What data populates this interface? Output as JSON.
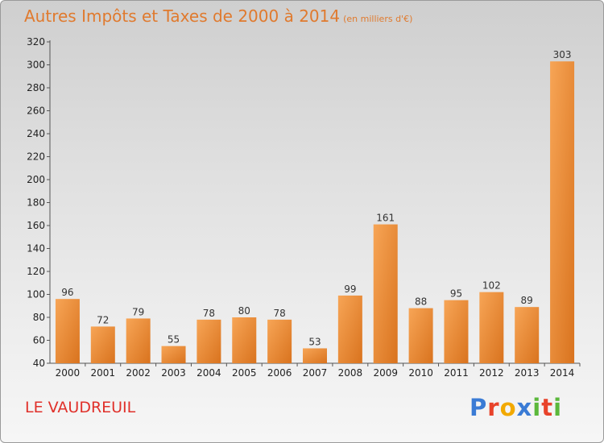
{
  "header": {
    "title": "Autres Impôts et Taxes de 2000 à 2014",
    "unit": "(en milliers d'€)"
  },
  "footer": {
    "town": "LE VAUDREUIL",
    "logo": [
      "P",
      "r",
      "o",
      "x",
      "i",
      "t",
      "i"
    ]
  },
  "colors": {
    "title": "#e07a2e",
    "town": "#e0302a",
    "bar_light": "#f7a556",
    "bar_dark": "#d9731e",
    "logo": [
      "#3a7bd5",
      "#e8432b",
      "#f2a900",
      "#3a7bd5",
      "#5bb83b",
      "#e8432b",
      "#5bb83b"
    ]
  },
  "chart_data": {
    "type": "bar",
    "title": "Autres Impôts et Taxes de 2000 à 2014",
    "subtitle": "(en milliers d'€)",
    "xlabel": "",
    "ylabel": "",
    "categories": [
      "2000",
      "2001",
      "2002",
      "2003",
      "2004",
      "2005",
      "2006",
      "2007",
      "2008",
      "2009",
      "2010",
      "2011",
      "2012",
      "2013",
      "2014"
    ],
    "values": [
      96,
      72,
      79,
      55,
      78,
      80,
      78,
      53,
      99,
      161,
      88,
      95,
      102,
      89,
      303
    ],
    "ylim": [
      40,
      320
    ],
    "yticks": [
      40,
      60,
      80,
      100,
      120,
      140,
      160,
      180,
      200,
      220,
      240,
      260,
      280,
      300,
      320
    ],
    "grid": false,
    "legend": "none"
  }
}
